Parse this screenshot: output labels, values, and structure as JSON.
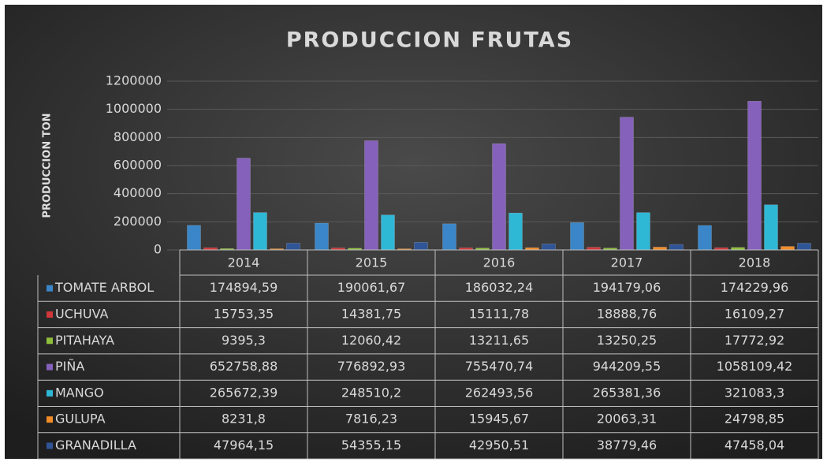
{
  "chart_data": {
    "type": "bar",
    "title": "PRODUCCION  FRUTAS",
    "y_label": "PRODUCCION TON",
    "categories": [
      "2014",
      "2015",
      "2016",
      "2017",
      "2018"
    ],
    "ylim": [
      0,
      1200000
    ],
    "yticks": [
      0,
      200000,
      400000,
      600000,
      800000,
      1000000,
      1200000
    ],
    "grid": true,
    "series": [
      {
        "name": "TOMATE ARBOL",
        "color": "#3a86c8",
        "values": [
          174894.59,
          190061.67,
          186032.24,
          194179.06,
          174229.96
        ],
        "value_labels": [
          "174894,59",
          "190061,67",
          "186032,24",
          "194179,06",
          "174229,96"
        ]
      },
      {
        "name": "UCHUVA",
        "color": "#d0373a",
        "values": [
          15753.35,
          14381.75,
          15111.78,
          18888.76,
          16109.27
        ],
        "value_labels": [
          "15753,35",
          "14381,75",
          "15111,78",
          "18888,76",
          "16109,27"
        ]
      },
      {
        "name": "PITAHAYA",
        "color": "#8fbf3a",
        "values": [
          9395.3,
          12060.42,
          13211.65,
          13250.25,
          17772.92
        ],
        "value_labels": [
          "9395,3",
          "12060,42",
          "13211,65",
          "13250,25",
          "17772,92"
        ]
      },
      {
        "name": "PIÑA",
        "color": "#8561bb",
        "values": [
          652758.88,
          776892.93,
          755470.74,
          944209.55,
          1058109.42
        ],
        "value_labels": [
          "652758,88",
          "776892,93",
          "755470,74",
          "944209,55",
          "1058109,42"
        ]
      },
      {
        "name": "MANGO",
        "color": "#2fb8d6",
        "values": [
          265672.39,
          248510.2,
          262493.56,
          265381.36,
          321083.3
        ],
        "value_labels": [
          "265672,39",
          "248510,2",
          "262493,56",
          "265381,36",
          "321083,3"
        ]
      },
      {
        "name": "GULUPA",
        "color": "#f28c28",
        "values": [
          8231.8,
          7816.23,
          15945.67,
          20063.31,
          24798.85
        ],
        "value_labels": [
          "8231,8",
          "7816,23",
          "15945,67",
          "20063,31",
          "24798,85"
        ]
      },
      {
        "name": "GRANADILLA",
        "color": "#2f5597",
        "values": [
          47964.15,
          54355.15,
          42950.51,
          38779.46,
          47458.04
        ],
        "value_labels": [
          "47964,15",
          "54355,15",
          "42950,51",
          "38779,46",
          "47458,04"
        ]
      }
    ]
  }
}
